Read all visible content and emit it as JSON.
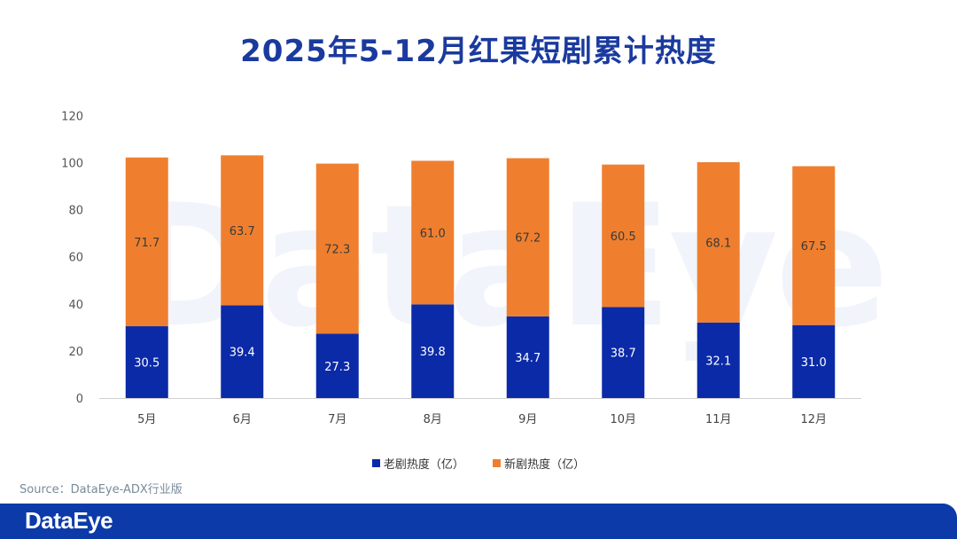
{
  "header": {
    "title": "2025年5-12月红果短剧累计热度"
  },
  "watermark": "DataEye",
  "chart_data": {
    "type": "bar",
    "stacked": true,
    "title": "2025年5-12月红果短剧累计热度",
    "categories": [
      "5月",
      "6月",
      "7月",
      "8月",
      "9月",
      "10月",
      "11月",
      "12月"
    ],
    "series": [
      {
        "name": "老剧热度（亿）",
        "color": "#0b2aa8",
        "values": [
          30.5,
          39.4,
          27.3,
          39.8,
          34.7,
          38.7,
          32.1,
          31.0
        ]
      },
      {
        "name": "新剧热度（亿）",
        "color": "#ef7f2e",
        "values": [
          71.7,
          63.7,
          72.3,
          61.0,
          67.2,
          60.5,
          68.1,
          67.5
        ]
      }
    ],
    "ylim": [
      0,
      120
    ],
    "yticks": [
      0,
      20,
      40,
      60,
      80,
      100,
      120
    ],
    "xlabel": "",
    "ylabel": "",
    "legend": "bottom",
    "grid": false
  },
  "source": "Source：DataEye-ADX行业版",
  "footer": {
    "logo": "DataEye"
  }
}
